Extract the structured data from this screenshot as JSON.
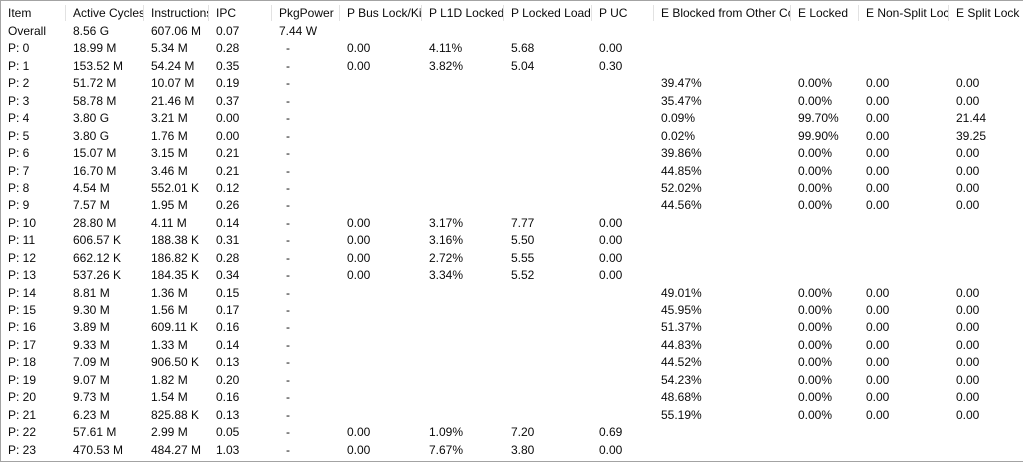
{
  "colors": {
    "background": "#ffffff",
    "text": "#0a0a0a",
    "outer_border": "#a3a3a3",
    "header_separator": "#e2e2e2"
  },
  "table": {
    "columns": [
      "Item",
      "Active Cycles",
      "Instructions",
      "IPC",
      "PkgPower",
      "P Bus Lock/Ki",
      "P L1D Locked",
      "P Locked Loads",
      "P UC",
      "E Blocked from Other Core",
      "E Locked",
      "E Non-Split Lock",
      "E Split Lock"
    ],
    "rows": [
      [
        "Overall",
        "8.56 G",
        "607.06 M",
        "0.07",
        "7.44 W",
        "",
        "",
        "",
        "",
        "",
        "",
        "",
        ""
      ],
      [
        "P: 0",
        "18.99 M",
        "5.34 M",
        "0.28",
        "-",
        "0.00",
        "4.11%",
        "5.68",
        "0.00",
        "",
        "",
        "",
        ""
      ],
      [
        "P: 1",
        "153.52 M",
        "54.24 M",
        "0.35",
        "-",
        "0.00",
        "3.82%",
        "5.04",
        "0.30",
        "",
        "",
        "",
        ""
      ],
      [
        "P: 2",
        "51.72 M",
        "10.07 M",
        "0.19",
        "-",
        "",
        "",
        "",
        "",
        "39.47%",
        "0.00%",
        "0.00",
        "0.00"
      ],
      [
        "P: 3",
        "58.78 M",
        "21.46 M",
        "0.37",
        "-",
        "",
        "",
        "",
        "",
        "35.47%",
        "0.00%",
        "0.00",
        "0.00"
      ],
      [
        "P: 4",
        "3.80 G",
        "3.21 M",
        "0.00",
        "-",
        "",
        "",
        "",
        "",
        "0.09%",
        "99.70%",
        "0.00",
        "21.44"
      ],
      [
        "P: 5",
        "3.80 G",
        "1.76 M",
        "0.00",
        "-",
        "",
        "",
        "",
        "",
        "0.02%",
        "99.90%",
        "0.00",
        "39.25"
      ],
      [
        "P: 6",
        "15.07 M",
        "3.15 M",
        "0.21",
        "-",
        "",
        "",
        "",
        "",
        "39.86%",
        "0.00%",
        "0.00",
        "0.00"
      ],
      [
        "P: 7",
        "16.70 M",
        "3.46 M",
        "0.21",
        "-",
        "",
        "",
        "",
        "",
        "44.85%",
        "0.00%",
        "0.00",
        "0.00"
      ],
      [
        "P: 8",
        "4.54 M",
        "552.01 K",
        "0.12",
        "-",
        "",
        "",
        "",
        "",
        "52.02%",
        "0.00%",
        "0.00",
        "0.00"
      ],
      [
        "P: 9",
        "7.57 M",
        "1.95 M",
        "0.26",
        "-",
        "",
        "",
        "",
        "",
        "44.56%",
        "0.00%",
        "0.00",
        "0.00"
      ],
      [
        "P: 10",
        "28.80 M",
        "4.11 M",
        "0.14",
        "-",
        "0.00",
        "3.17%",
        "7.77",
        "0.00",
        "",
        "",
        "",
        ""
      ],
      [
        "P: 11",
        "606.57 K",
        "188.38 K",
        "0.31",
        "-",
        "0.00",
        "3.16%",
        "5.50",
        "0.00",
        "",
        "",
        "",
        ""
      ],
      [
        "P: 12",
        "662.12 K",
        "186.82 K",
        "0.28",
        "-",
        "0.00",
        "2.72%",
        "5.55",
        "0.00",
        "",
        "",
        "",
        ""
      ],
      [
        "P: 13",
        "537.26 K",
        "184.35 K",
        "0.34",
        "-",
        "0.00",
        "3.34%",
        "5.52",
        "0.00",
        "",
        "",
        "",
        ""
      ],
      [
        "P: 14",
        "8.81 M",
        "1.36 M",
        "0.15",
        "-",
        "",
        "",
        "",
        "",
        "49.01%",
        "0.00%",
        "0.00",
        "0.00"
      ],
      [
        "P: 15",
        "9.30 M",
        "1.56 M",
        "0.17",
        "-",
        "",
        "",
        "",
        "",
        "45.95%",
        "0.00%",
        "0.00",
        "0.00"
      ],
      [
        "P: 16",
        "3.89 M",
        "609.11 K",
        "0.16",
        "-",
        "",
        "",
        "",
        "",
        "51.37%",
        "0.00%",
        "0.00",
        "0.00"
      ],
      [
        "P: 17",
        "9.33 M",
        "1.33 M",
        "0.14",
        "-",
        "",
        "",
        "",
        "",
        "44.83%",
        "0.00%",
        "0.00",
        "0.00"
      ],
      [
        "P: 18",
        "7.09 M",
        "906.50 K",
        "0.13",
        "-",
        "",
        "",
        "",
        "",
        "44.52%",
        "0.00%",
        "0.00",
        "0.00"
      ],
      [
        "P: 19",
        "9.07 M",
        "1.82 M",
        "0.20",
        "-",
        "",
        "",
        "",
        "",
        "54.23%",
        "0.00%",
        "0.00",
        "0.00"
      ],
      [
        "P: 20",
        "9.73 M",
        "1.54 M",
        "0.16",
        "-",
        "",
        "",
        "",
        "",
        "48.68%",
        "0.00%",
        "0.00",
        "0.00"
      ],
      [
        "P: 21",
        "6.23 M",
        "825.88 K",
        "0.13",
        "-",
        "",
        "",
        "",
        "",
        "55.19%",
        "0.00%",
        "0.00",
        "0.00"
      ],
      [
        "P: 22",
        "57.61 M",
        "2.99 M",
        "0.05",
        "-",
        "0.00",
        "1.09%",
        "7.20",
        "0.69",
        "",
        "",
        "",
        ""
      ],
      [
        "P: 23",
        "470.53 M",
        "484.27 M",
        "1.03",
        "-",
        "0.00",
        "7.67%",
        "3.80",
        "0.00",
        "",
        "",
        "",
        ""
      ]
    ]
  }
}
